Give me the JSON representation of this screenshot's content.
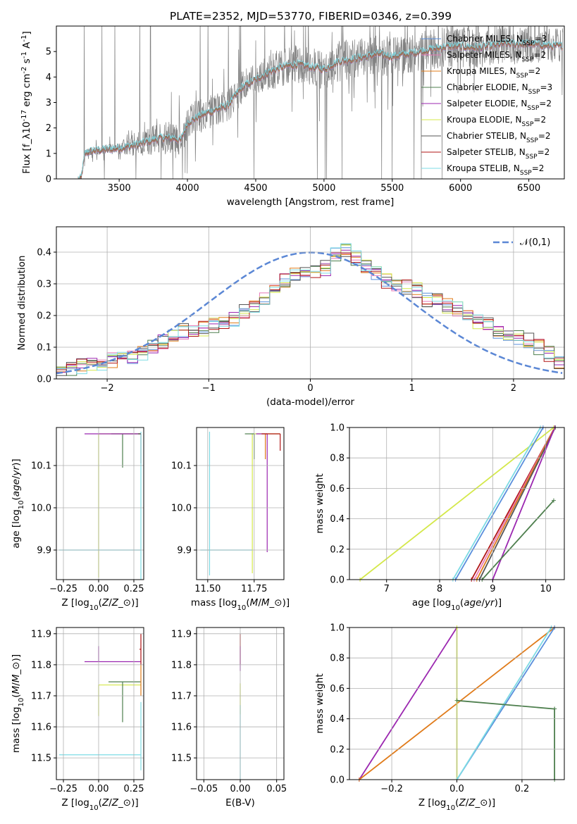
{
  "title": "PLATE=2352, MJD=53770, FIBERID=0346, z=0.399",
  "colors": {
    "chabrier_miles": "#5a8fdc",
    "salpeter_miles": "#e879b8",
    "kroupa_miles": "#e07b1a",
    "chabrier_elodie": "#4e7f4e",
    "salpeter_elodie": "#9b27b0",
    "kroupa_elodie": "#d4e84a",
    "chabrier_stelib": "#555555",
    "salpeter_stelib": "#b01515",
    "kroupa_stelib": "#7ddbe4",
    "data": "#7f7f7f",
    "gaussian": "#5b87d5"
  },
  "chart_data": [
    {
      "id": "spectrum",
      "type": "line",
      "xlabel": "wavelength [Angstrom, rest frame]",
      "ylabel": "Flux [f$_\\lambda$10$^{-17}$ erg cm$^{-2}$ s$^{-1}$ A$^{-1}$]",
      "xlim": [
        3040,
        6760
      ],
      "ylim": [
        0,
        6
      ],
      "xticks": [
        "3500",
        "4000",
        "4500",
        "5000",
        "5500",
        "6000",
        "6500"
      ],
      "yticks": [
        "0",
        "1",
        "2",
        "3",
        "4",
        "5"
      ],
      "legend_position": "top-right",
      "legend": [
        "Chabrier MILES, N$_{SSP}$=3",
        "Salpeter MILES, N$_{SSP}$=2",
        "Kroupa MILES, N$_{SSP}$=2",
        "Chabrier ELODIE, N$_{SSP}$=3",
        "Salpeter ELODIE, N$_{SSP}$=2",
        "Kroupa ELODIE, N$_{SSP}$=2",
        "Chabrier STELIB, N$_{SSP}$=2",
        "Salpeter STELIB, N$_{SSP}$=2",
        "Kroupa STELIB, N$_{SSP}$=2"
      ],
      "model_continuum": {
        "x": [
          3200,
          3220,
          3250,
          3300,
          3400,
          3500,
          3600,
          3700,
          3800,
          3900,
          3950,
          4000,
          4100,
          4200,
          4300,
          4400,
          4500,
          4600,
          4700,
          4800,
          4900,
          5000,
          5100,
          5200,
          5300,
          5400,
          5500,
          5600,
          5700,
          5800,
          5900,
          6000,
          6100,
          6200,
          6300,
          6400,
          6500,
          6600,
          6750
        ],
        "y": [
          0,
          0,
          1.0,
          1.1,
          1.15,
          1.2,
          1.3,
          1.45,
          1.6,
          1.6,
          1.5,
          2.2,
          2.5,
          2.7,
          2.9,
          3.6,
          3.9,
          4.2,
          4.4,
          4.5,
          4.4,
          4.3,
          4.6,
          4.7,
          4.8,
          4.9,
          4.8,
          4.9,
          5.0,
          5.1,
          5.2,
          5.2,
          5.15,
          5.2,
          5.3,
          5.3,
          5.3,
          5.25,
          5.2
        ]
      },
      "data_noise_scale": {
        "x": [
          3200,
          3500,
          3600,
          3800,
          4000,
          4300,
          4600,
          5000,
          5400,
          5800,
          6200,
          6600
        ],
        "y": [
          0.15,
          0.3,
          0.6,
          0.8,
          0.9,
          0.8,
          0.9,
          1.0,
          1.0,
          1.0,
          1.0,
          0.9
        ]
      }
    },
    {
      "id": "residuals",
      "type": "bar",
      "xlabel": "(data-model)/error",
      "ylabel": "Normed distribution",
      "xlim": [
        -2.5,
        2.5
      ],
      "ylim": [
        0,
        0.48
      ],
      "xticks": [
        "−2",
        "−1",
        "0",
        "1",
        "2"
      ],
      "yticks": [
        "0.0",
        "0.1",
        "0.2",
        "0.3",
        "0.4"
      ],
      "legend_position": "top-right",
      "legend": [
        "$\\mathcal{N}(0,1)$"
      ],
      "bin_edges": [
        -2.5,
        -2.4,
        -2.3,
        -2.2,
        -2.1,
        -2.0,
        -1.9,
        -1.8,
        -1.7,
        -1.6,
        -1.5,
        -1.4,
        -1.3,
        -1.2,
        -1.1,
        -1.0,
        -0.9,
        -0.8,
        -0.7,
        -0.6,
        -0.5,
        -0.4,
        -0.3,
        -0.2,
        -0.1,
        0.0,
        0.1,
        0.2,
        0.3,
        0.4,
        0.5,
        0.6,
        0.7,
        0.8,
        0.9,
        1.0,
        1.1,
        1.2,
        1.3,
        1.4,
        1.5,
        1.6,
        1.7,
        1.8,
        1.9,
        2.0,
        2.1,
        2.2,
        2.3,
        2.4,
        2.5
      ],
      "base_hist": [
        0.02,
        0.03,
        0.04,
        0.05,
        0.05,
        0.06,
        0.07,
        0.07,
        0.08,
        0.1,
        0.12,
        0.13,
        0.15,
        0.15,
        0.16,
        0.17,
        0.17,
        0.19,
        0.21,
        0.23,
        0.25,
        0.28,
        0.31,
        0.33,
        0.34,
        0.34,
        0.35,
        0.39,
        0.41,
        0.38,
        0.35,
        0.33,
        0.31,
        0.3,
        0.29,
        0.28,
        0.25,
        0.25,
        0.23,
        0.22,
        0.2,
        0.18,
        0.17,
        0.15,
        0.14,
        0.13,
        0.12,
        0.1,
        0.08,
        0.05
      ],
      "gaussian": {
        "mu": 0,
        "sigma": 1
      }
    },
    {
      "id": "age_vs_Z",
      "type": "scatter",
      "xlabel": "Z [log$_{10}$($Z/Z_\\odot$)]",
      "ylabel": "age  [log$_{10}$($age/yr$)]",
      "xlim": [
        -0.3,
        0.32
      ],
      "ylim": [
        9.83,
        10.19
      ],
      "xticks": [
        "−0.25",
        "0.00",
        "0.25"
      ],
      "yticks": [
        "9.9",
        "10.0",
        "10.1"
      ],
      "errorbars": [
        {
          "model": "kroupa_elodie",
          "x": 0.0,
          "y": 10.175,
          "xerr": [
            0.0,
            0.3
          ],
          "yerr": [
            0.34,
            0.0
          ]
        },
        {
          "model": "chabrier_elodie",
          "x": 0.17,
          "y": 10.175,
          "xerr": [
            0.08,
            0.13
          ],
          "yerr": [
            0.08,
            0.0
          ]
        },
        {
          "model": "salpeter_elodie",
          "x": 0.29,
          "y": 10.175,
          "xerr": [
            0.39,
            0.01
          ],
          "yerr": [
            0.0,
            0.0
          ]
        },
        {
          "model": "salpeter_stelib",
          "x": 0.3,
          "y": 10.175,
          "xerr": [
            0.01,
            0.0
          ],
          "yerr": [
            0.07,
            0.0
          ]
        },
        {
          "model": "kroupa_stelib",
          "x": 0.3,
          "y": 9.9,
          "xerr": [
            0.58,
            0.0
          ],
          "yerr": [
            0.07,
            0.28
          ]
        },
        {
          "model": "chabrier_stelib",
          "x": 0.3,
          "y": 10.175,
          "xerr": [
            0.02,
            0.0
          ],
          "yerr": [
            0.0,
            0.0
          ]
        }
      ]
    },
    {
      "id": "age_vs_mass",
      "type": "scatter",
      "xlabel": "mass [log$_{10}$($M/M_\\odot$)]",
      "ylabel": "",
      "xlim": [
        11.44,
        11.91
      ],
      "ylim": [
        9.83,
        10.19
      ],
      "xticks": [
        "11.50",
        "11.75"
      ],
      "yticks": [
        "9.9",
        "10.0",
        "10.1"
      ],
      "errorbars": [
        {
          "model": "kroupa_elodie",
          "x": 11.74,
          "y": 10.175,
          "xerr": [
            0.0,
            0.15
          ],
          "yerr": [
            0.33,
            0.0
          ]
        },
        {
          "model": "chabrier_elodie",
          "x": 11.75,
          "y": 10.175,
          "xerr": [
            0.05,
            0.0
          ],
          "yerr": [
            0.06,
            0.0
          ]
        },
        {
          "model": "salpeter_elodie",
          "x": 11.82,
          "y": 10.175,
          "xerr": [
            0.06,
            0.0
          ],
          "yerr": [
            0.28,
            0.0
          ]
        },
        {
          "model": "kroupa_miles",
          "x": 11.81,
          "y": 10.175,
          "xerr": [
            0.0,
            0.0
          ],
          "yerr": [
            0.06,
            0.0
          ]
        },
        {
          "model": "salpeter_stelib",
          "x": 11.89,
          "y": 10.175,
          "xerr": [
            0.1,
            0.0
          ],
          "yerr": [
            0.04,
            0.0
          ]
        },
        {
          "model": "kroupa_stelib",
          "x": 11.51,
          "y": 9.9,
          "xerr": [
            0.05,
            0.23
          ],
          "yerr": [
            0.06,
            0.28
          ]
        }
      ]
    },
    {
      "id": "mass_weight_vs_age",
      "type": "line",
      "xlabel": "age  [log$_{10}$($age/yr$)]",
      "ylabel": "mass weight",
      "xlim": [
        6.3,
        10.35
      ],
      "ylim": [
        0,
        1
      ],
      "xticks": [
        "7",
        "8",
        "9",
        "10"
      ],
      "yticks": [
        "0.0",
        "0.2",
        "0.4",
        "0.6",
        "0.8",
        "1.0"
      ],
      "series": [
        {
          "model": "kroupa_elodie",
          "x": [
            6.5,
            10.15
          ],
          "y": [
            0.0,
            1.0
          ]
        },
        {
          "model": "kroupa_stelib",
          "x": [
            8.25,
            9.9
          ],
          "y": [
            0.0,
            1.0
          ]
        },
        {
          "model": "chabrier_miles",
          "x": [
            8.3,
            9.95
          ],
          "y": [
            0.0,
            1.0
          ]
        },
        {
          "model": "salpeter_stelib",
          "x": [
            8.6,
            10.17
          ],
          "y": [
            0.0,
            1.0
          ]
        },
        {
          "model": "salpeter_miles",
          "x": [
            8.65,
            10.17
          ],
          "y": [
            0.0,
            1.0
          ]
        },
        {
          "model": "kroupa_miles",
          "x": [
            8.7,
            10.17
          ],
          "y": [
            0.0,
            1.0
          ]
        },
        {
          "model": "chabrier_stelib",
          "x": [
            8.75,
            10.18
          ],
          "y": [
            0.0,
            1.0
          ]
        },
        {
          "model": "salpeter_elodie",
          "x": [
            9.0,
            10.17
          ],
          "y": [
            0.0,
            1.0
          ]
        },
        {
          "model": "chabrier_elodie",
          "x": [
            8.8,
            10.15
          ],
          "y": [
            0.0,
            0.52
          ]
        }
      ]
    },
    {
      "id": "mass_vs_Z",
      "type": "scatter",
      "xlabel": "Z [log$_{10}$($Z/Z_\\odot$)]",
      "ylabel": "mass [log$_{10}$($M/M_\\odot$)]",
      "xlim": [
        -0.3,
        0.32
      ],
      "ylim": [
        11.43,
        11.92
      ],
      "xticks": [
        "−0.25",
        "0.00",
        "0.25"
      ],
      "yticks": [
        "11.5",
        "11.6",
        "11.7",
        "11.8",
        "11.9"
      ],
      "errorbars": [
        {
          "model": "salpeter_elodie",
          "x": 0.0,
          "y": 11.81,
          "xerr": [
            0.1,
            0.3
          ],
          "yerr": [
            0.0,
            0.05
          ]
        },
        {
          "model": "kroupa_elodie",
          "x": 0.0,
          "y": 11.735,
          "xerr": [
            0.0,
            0.3
          ],
          "yerr": [
            0.1,
            0.0
          ]
        },
        {
          "model": "chabrier_elodie",
          "x": 0.17,
          "y": 11.745,
          "xerr": [
            0.1,
            0.13
          ],
          "yerr": [
            0.13,
            0.0
          ]
        },
        {
          "model": "salpeter_stelib",
          "x": 0.3,
          "y": 11.85,
          "xerr": [
            0.01,
            0.0
          ],
          "yerr": [
            0.05,
            0.05
          ]
        },
        {
          "model": "kroupa_miles",
          "x": 0.3,
          "y": 11.75,
          "xerr": [
            0.0,
            0.0
          ],
          "yerr": [
            0.05,
            0.05
          ]
        },
        {
          "model": "kroupa_stelib",
          "x": 0.3,
          "y": 11.51,
          "xerr": [
            0.58,
            0.0
          ],
          "yerr": [
            0.05,
            0.17
          ]
        }
      ]
    },
    {
      "id": "mass_vs_ebv",
      "type": "scatter",
      "xlabel": "E(B-V)",
      "ylabel": "",
      "xlim": [
        -0.06,
        0.06
      ],
      "ylim": [
        11.43,
        11.92
      ],
      "xticks": [
        "−0.05",
        "0.00",
        "0.05"
      ],
      "yticks": [
        "11.5",
        "11.6",
        "11.7",
        "11.8",
        "11.9"
      ],
      "errorbars": [
        {
          "model": "salpeter_stelib",
          "x": 0.0,
          "y": 11.85,
          "xerr": [
            0,
            0
          ],
          "yerr": [
            0.05,
            0.05
          ]
        },
        {
          "model": "salpeter_elodie",
          "x": 0.0,
          "y": 11.81,
          "xerr": [
            0,
            0
          ],
          "yerr": [
            0.03,
            0.05
          ]
        },
        {
          "model": "kroupa_elodie",
          "x": 0.0,
          "y": 11.74,
          "xerr": [
            0,
            0
          ],
          "yerr": [
            0.1,
            0.0
          ]
        },
        {
          "model": "kroupa_stelib",
          "x": 0.0,
          "y": 11.51,
          "xerr": [
            0,
            0
          ],
          "yerr": [
            0.1,
            0.16
          ]
        }
      ]
    },
    {
      "id": "mass_weight_vs_Z",
      "type": "line",
      "xlabel": "Z [log$_{10}$($Z/Z_\\odot$)]",
      "ylabel": "mass weight",
      "xlim": [
        -0.33,
        0.33
      ],
      "ylim": [
        0,
        1
      ],
      "xticks": [
        "−0.2",
        "0.0",
        "0.2"
      ],
      "yticks": [
        "0.0",
        "0.2",
        "0.4",
        "0.6",
        "0.8",
        "1.0"
      ],
      "series": [
        {
          "model": "salpeter_elodie",
          "x": [
            -0.3,
            0.0
          ],
          "y": [
            0.0,
            1.0
          ]
        },
        {
          "model": "kroupa_miles",
          "x": [
            -0.3,
            0.3
          ],
          "y": [
            0.0,
            1.0
          ]
        },
        {
          "model": "kroupa_elodie",
          "x": [
            0.0,
            0.0
          ],
          "y": [
            0.0,
            1.0
          ]
        },
        {
          "model": "chabrier_miles",
          "x": [
            0.0,
            0.3
          ],
          "y": [
            0.0,
            1.0
          ]
        },
        {
          "model": "kroupa_stelib",
          "x": [
            0.0,
            0.29
          ],
          "y": [
            0.0,
            1.0
          ]
        },
        {
          "model": "chabrier_elodie",
          "x": [
            0.0,
            0.3
          ],
          "y": [
            0.52,
            0.465
          ]
        },
        {
          "model": "chabrier_elodie",
          "x": [
            0.3,
            0.3
          ],
          "y": [
            0.0,
            0.465
          ]
        }
      ]
    }
  ]
}
